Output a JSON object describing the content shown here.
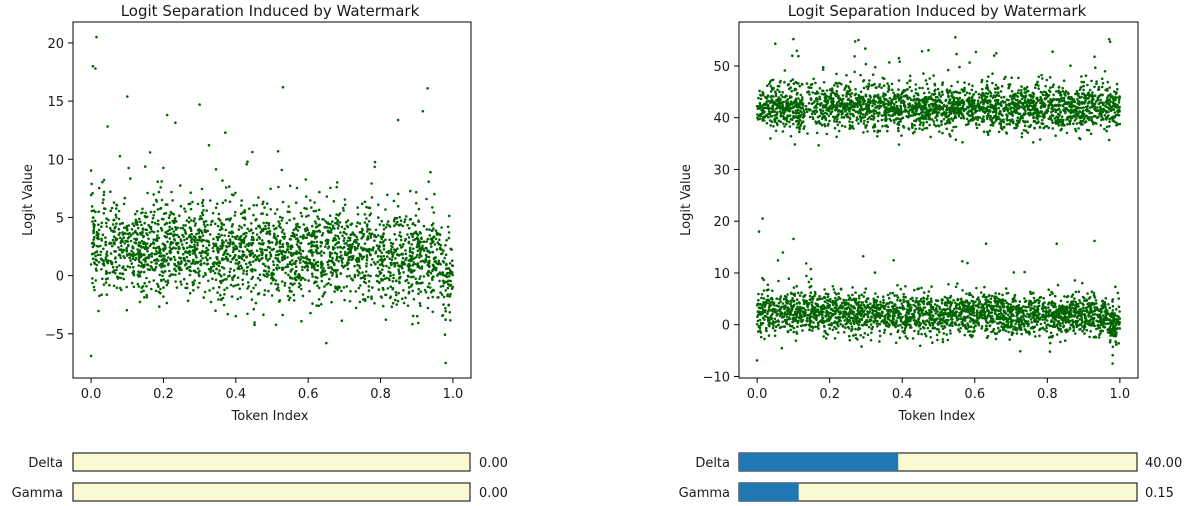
{
  "chart_data": [
    {
      "type": "scatter",
      "title": "Logit Separation Induced by Watermark",
      "xlabel": "Token Index",
      "ylabel": "Logit Value",
      "xlim": [
        -0.05,
        1.05
      ],
      "ylim": [
        -8.8,
        21.8
      ],
      "xticks": [
        0.0,
        0.2,
        0.4,
        0.6,
        0.8,
        1.0
      ],
      "xtick_labels": [
        "0.0",
        "0.2",
        "0.4",
        "0.6",
        "0.8",
        "1.0"
      ],
      "yticks": [
        -5,
        0,
        5,
        10,
        15,
        20
      ],
      "ytick_labels": [
        "−5",
        "0",
        "5",
        "10",
        "15",
        "20"
      ],
      "grid": false,
      "point_color": "#006400",
      "series": [
        {
          "cluster_center": 2.0,
          "spread_approx": 2.0,
          "x_range": [
            0.0,
            1.0
          ]
        }
      ],
      "outliers": [
        {
          "x": 0.015,
          "y": 20.5
        },
        {
          "x": 0.005,
          "y": 18.0
        },
        {
          "x": 0.012,
          "y": 17.8
        },
        {
          "x": 0.53,
          "y": 16.2
        },
        {
          "x": 0.93,
          "y": 16.1
        },
        {
          "x": 0.1,
          "y": 15.4
        },
        {
          "x": 0.3,
          "y": 14.7
        },
        {
          "x": 0.0,
          "y": -6.9
        },
        {
          "x": 0.98,
          "y": -7.5
        },
        {
          "x": 0.65,
          "y": -5.8
        }
      ],
      "sliders": [
        {
          "label": "Delta",
          "value_text": "0.00",
          "value": 0.0,
          "min": 0,
          "max": 100
        },
        {
          "label": "Gamma",
          "value_text": "0.00",
          "value": 0.0,
          "min": 0,
          "max": 1
        }
      ]
    },
    {
      "type": "scatter",
      "title": "Logit Separation Induced by Watermark",
      "xlabel": "Token Index",
      "ylabel": "Logit Value",
      "xlim": [
        -0.05,
        1.05
      ],
      "ylim": [
        -10.3,
        58.5
      ],
      "xticks": [
        0.0,
        0.2,
        0.4,
        0.6,
        0.8,
        1.0
      ],
      "xtick_labels": [
        "0.0",
        "0.2",
        "0.4",
        "0.6",
        "0.8",
        "1.0"
      ],
      "yticks": [
        -10,
        0,
        10,
        20,
        30,
        40,
        50
      ],
      "ytick_labels": [
        "−10",
        "0",
        "10",
        "20",
        "30",
        "40",
        "50"
      ],
      "grid": false,
      "point_color": "#006400",
      "series": [
        {
          "cluster_center": 2.0,
          "spread_approx": 2.0,
          "x_range": [
            0.0,
            1.0
          ]
        },
        {
          "cluster_center": 42.0,
          "spread_approx": 2.2,
          "x_range": [
            0.0,
            1.0
          ]
        }
      ],
      "outliers": [
        {
          "x": 0.1,
          "y": 55.2
        },
        {
          "x": 0.05,
          "y": 54.3
        },
        {
          "x": 0.55,
          "y": 52.3
        },
        {
          "x": 0.93,
          "y": 51.8
        },
        {
          "x": 0.015,
          "y": 20.5
        },
        {
          "x": 0.005,
          "y": 18.0
        },
        {
          "x": 0.93,
          "y": 16.2
        },
        {
          "x": 0.0,
          "y": -6.9
        },
        {
          "x": 0.98,
          "y": -7.5
        },
        {
          "x": 0.78,
          "y": 35.8
        }
      ],
      "sliders": [
        {
          "label": "Delta",
          "value_text": "40.00",
          "value": 40.0,
          "min": 0,
          "max": 100
        },
        {
          "label": "Gamma",
          "value_text": "0.15",
          "value": 0.15,
          "min": 0,
          "max": 1
        }
      ]
    }
  ],
  "colors": {
    "slider_fill": "#1f77b4",
    "slider_track": "#fafad2",
    "axis": "#000000"
  }
}
